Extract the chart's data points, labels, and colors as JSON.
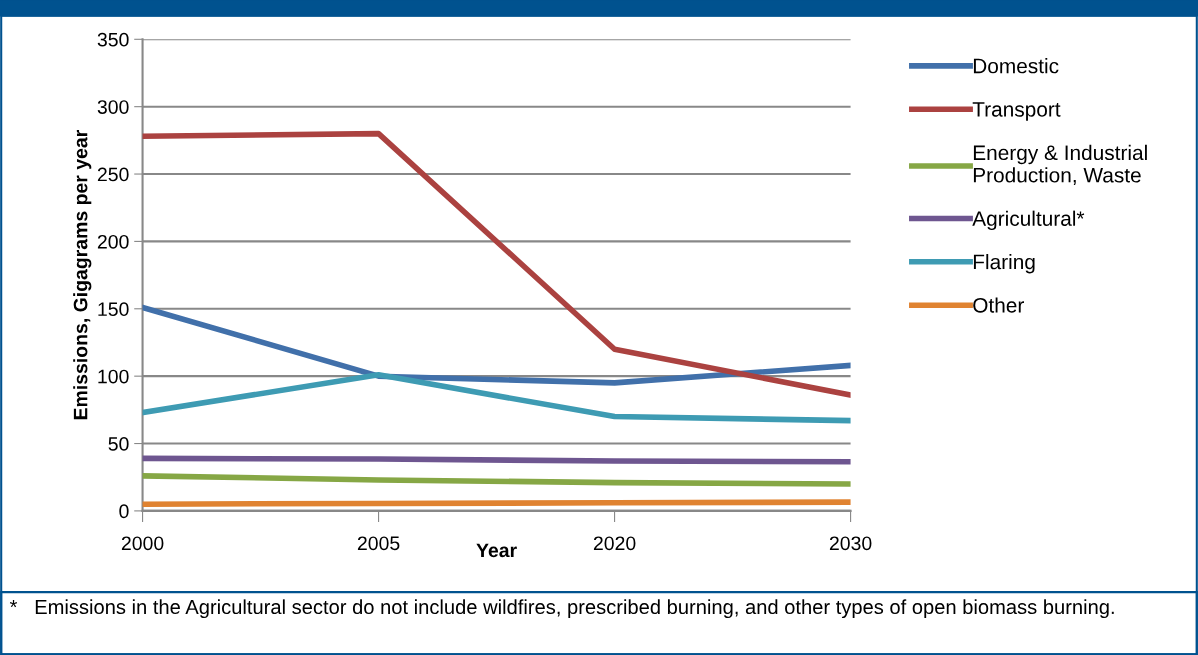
{
  "chart_data": {
    "type": "line",
    "xlabel": "Year",
    "ylabel": "Emissions, Gigagrams per year",
    "categories": [
      "2000",
      "2005",
      "2020",
      "2030"
    ],
    "series": [
      {
        "name": "Domestic",
        "color": "#4170aa",
        "values": [
          151,
          100,
          95,
          108
        ]
      },
      {
        "name": "Transport",
        "color": "#ab4240",
        "values": [
          278,
          280,
          120,
          86
        ]
      },
      {
        "name": "Energy & Industrial\nProduction, Waste",
        "color": "#86a745",
        "values": [
          26,
          23,
          21,
          20
        ]
      },
      {
        "name": "Agricultural*",
        "color": "#6e5690",
        "values": [
          39,
          38.5,
          37,
          36.5
        ]
      },
      {
        "name": "Flaring",
        "color": "#3e9bb3",
        "values": [
          73,
          101,
          70,
          67
        ]
      },
      {
        "name": "Other",
        "color": "#e08331",
        "values": [
          5,
          5.5,
          6,
          6.5
        ]
      }
    ],
    "ylim": [
      0,
      350
    ],
    "yticks": [
      0,
      50,
      100,
      150,
      200,
      250,
      300,
      350
    ],
    "grid": "y",
    "legend": "right",
    "marker": "none",
    "line_style": "solid",
    "annotations": [
      "*   Emissions in the Agricultural sector do not include wildfires, prescribed burning, and other types of open biomass burning."
    ]
  }
}
